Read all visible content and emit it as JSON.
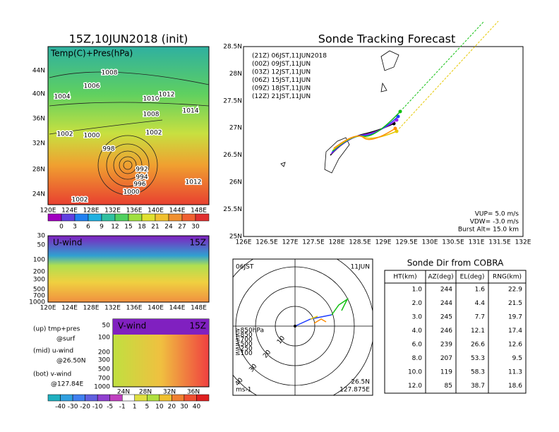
{
  "map": {
    "title": "15Z,10JUN2018 (init)",
    "label": "Temp(C)+Pres(hPa)",
    "lat_labels": [
      "44N",
      "40N",
      "36N",
      "32N",
      "28N",
      "24N"
    ],
    "lon_labels": [
      "120E",
      "124E",
      "128E",
      "132E",
      "136E",
      "140E",
      "144E",
      "148E"
    ],
    "isobars": [
      "1008",
      "1006",
      "1004",
      "1010",
      "1012",
      "1008",
      "1014",
      "1002",
      "1000",
      "1002",
      "998",
      "992",
      "994",
      "996",
      "1000",
      "1012",
      "1002"
    ],
    "colorbar": [
      "0",
      "3",
      "6",
      "9",
      "12",
      "15",
      "18",
      "21",
      "24",
      "27",
      "30"
    ]
  },
  "u_wind": {
    "label": "U-wind",
    "time": "15Z",
    "levels": [
      "30",
      "50",
      "100",
      "200",
      "300",
      "500",
      "700",
      "1000"
    ],
    "lon_labels": [
      "120E",
      "124E",
      "128E",
      "132E",
      "136E",
      "140E",
      "144E",
      "148E"
    ]
  },
  "v_wind": {
    "label": "V-wind",
    "time": "15Z",
    "levels": [
      "50",
      "100",
      "200",
      "300",
      "500",
      "700",
      "1000"
    ],
    "lat_labels": [
      "24N",
      "28N",
      "32N",
      "36N"
    ]
  },
  "notes": [
    "(up) tmp+pres",
    "@surf",
    "(mid) u-wind",
    "@26.50N",
    "(bot) v-wind",
    "@127.84E"
  ],
  "wind_colorbar": [
    "-40",
    "-30",
    "-20",
    "-10",
    "-5",
    "-1",
    "1",
    "5",
    "10",
    "20",
    "30",
    "40"
  ],
  "track": {
    "title": "Sonde Tracking Forecast",
    "legend": [
      "(21Z)  06JST,11JUN2018",
      "(00Z)  09JST,11JUN",
      "(03Z)  12JST,11JUN",
      "(06Z)  15JST,11JUN",
      "(09Z)  18JST,11JUN",
      "(12Z)  21JST,11JUN"
    ],
    "colors": [
      "#000000",
      "#a020f0",
      "#1e3cff",
      "#10c010",
      "#e6c800",
      "#ff8c00"
    ],
    "lat_labels": [
      "28.5N",
      "28N",
      "27.5N",
      "27N",
      "26.5N",
      "26N",
      "25.5N",
      "25N"
    ],
    "lon_labels": [
      "126E",
      "126.5E",
      "127E",
      "127.5E",
      "128E",
      "128.5E",
      "129E",
      "129.5E",
      "130E",
      "130.5E",
      "131E",
      "131.5E",
      "132E"
    ],
    "params": [
      "VUP=  5.0 m/s",
      "VDW= -3.0 m/s",
      "Burst Alt= 15.0 km"
    ]
  },
  "hodograph": {
    "time": "06JST",
    "date": "11JUN",
    "lat": "26.5N",
    "lon": "127.875E",
    "unit": "ms-1",
    "rings": [
      "10",
      "20",
      "30",
      "40"
    ],
    "levels": [
      "≥850hPa",
      "≤850",
      "≤700",
      "≤500",
      "≤250",
      "≤100"
    ]
  },
  "table": {
    "title": "Sonde Dir from COBRA",
    "header": [
      "HT(km)",
      "AZ(deg)",
      "EL(deg)",
      "RNG(km)"
    ],
    "rows": [
      [
        "1.0",
        "244",
        "1.6",
        "22.9"
      ],
      [
        "2.0",
        "244",
        "4.4",
        "21.5"
      ],
      [
        "3.0",
        "245",
        "7.7",
        "19.7"
      ],
      [
        "4.0",
        "246",
        "12.1",
        "17.4"
      ],
      [
        "6.0",
        "239",
        "26.6",
        "12.6"
      ],
      [
        "8.0",
        "207",
        "53.3",
        "9.5"
      ],
      [
        "10.0",
        "119",
        "58.3",
        "11.3"
      ],
      [
        "12.0",
        "85",
        "38.7",
        "18.6"
      ]
    ]
  }
}
